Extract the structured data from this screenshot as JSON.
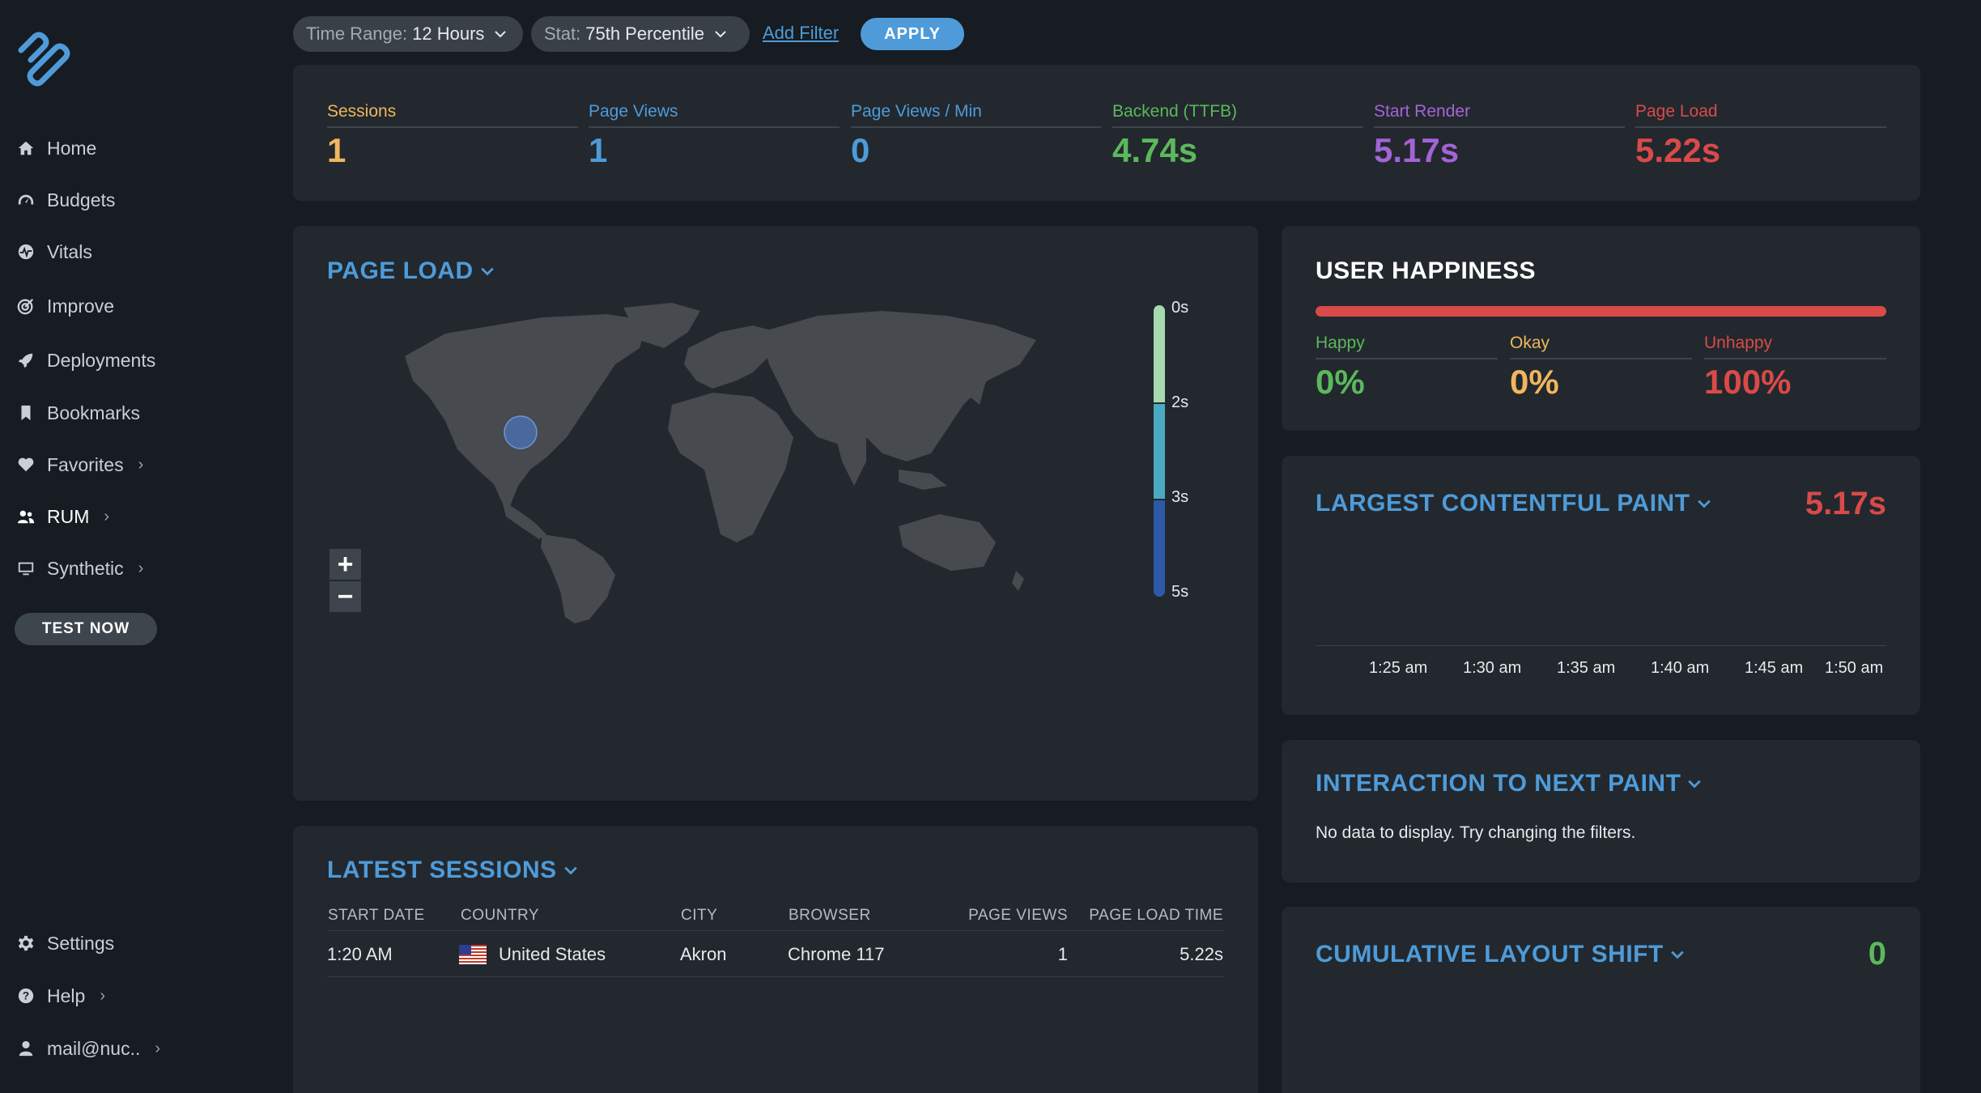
{
  "filters": {
    "time_range_label": "Time Range:",
    "time_range_value": "12 Hours",
    "stat_label": "Stat:",
    "stat_value": "75th Percentile",
    "add_filter": "Add Filter",
    "apply": "APPLY"
  },
  "sidebar": {
    "items": [
      {
        "label": "Home",
        "icon": "home-icon"
      },
      {
        "label": "Budgets",
        "icon": "gauge-icon"
      },
      {
        "label": "Vitals",
        "icon": "pulse-icon"
      },
      {
        "label": "Improve",
        "icon": "target-icon"
      },
      {
        "label": "Deployments",
        "icon": "rocket-icon"
      },
      {
        "label": "Bookmarks",
        "icon": "bookmark-icon"
      },
      {
        "label": "Favorites",
        "icon": "heart-icon"
      },
      {
        "label": "RUM",
        "icon": "users-icon"
      },
      {
        "label": "Synthetic",
        "icon": "monitor-icon"
      }
    ],
    "test_now": "TEST NOW",
    "bottom": [
      {
        "label": "Settings",
        "icon": "gear-icon"
      },
      {
        "label": "Help",
        "icon": "help-icon"
      },
      {
        "label": "mail@nuc..",
        "icon": "user-icon"
      }
    ]
  },
  "metrics": [
    {
      "label": "Sessions",
      "value": "1",
      "color": "#f0b65e"
    },
    {
      "label": "Page Views",
      "value": "1",
      "color": "#4f9bd9"
    },
    {
      "label": "Page Views / Min",
      "value": "0",
      "color": "#4f9bd9"
    },
    {
      "label": "Backend (TTFB)",
      "value": "4.74s",
      "color": "#5cb85c"
    },
    {
      "label": "Start Render",
      "value": "5.17s",
      "color": "#a463d6"
    },
    {
      "label": "Page Load",
      "value": "5.22s",
      "color": "#d94a49"
    }
  ],
  "page_load": {
    "title": "PAGE LOAD",
    "legend": [
      "0s",
      "2s",
      "3s",
      "5s"
    ],
    "legend_colors": [
      "#a7d9b1",
      "#4aaac1",
      "#2c5aa8"
    ],
    "zoom_in": "+",
    "zoom_out": "−"
  },
  "happiness": {
    "title": "USER HAPPINESS",
    "bar_color": "#d94a49",
    "happy_label": "Happy",
    "happy_value": "0%",
    "okay_label": "Okay",
    "okay_value": "0%",
    "unhappy_label": "Unhappy",
    "unhappy_value": "100%"
  },
  "lcp": {
    "title": "LARGEST CONTENTFUL PAINT",
    "value": "5.17s",
    "ticks": [
      "1:25 am",
      "1:30 am",
      "1:35 am",
      "1:40 am",
      "1:45 am",
      "1:50 am"
    ]
  },
  "inp": {
    "title": "INTERACTION TO NEXT PAINT",
    "message": "No data to display. Try changing the filters."
  },
  "cls": {
    "title": "CUMULATIVE LAYOUT SHIFT",
    "value": "0"
  },
  "sessions": {
    "title": "LATEST SESSIONS",
    "columns": [
      "START DATE",
      "COUNTRY",
      "CITY",
      "BROWSER",
      "PAGE VIEWS",
      "PAGE LOAD TIME"
    ],
    "rows": [
      {
        "start": "1:20 AM",
        "country": "United States",
        "city": "Akron",
        "browser": "Chrome 117",
        "views": "1",
        "load": "5.22s"
      }
    ]
  }
}
